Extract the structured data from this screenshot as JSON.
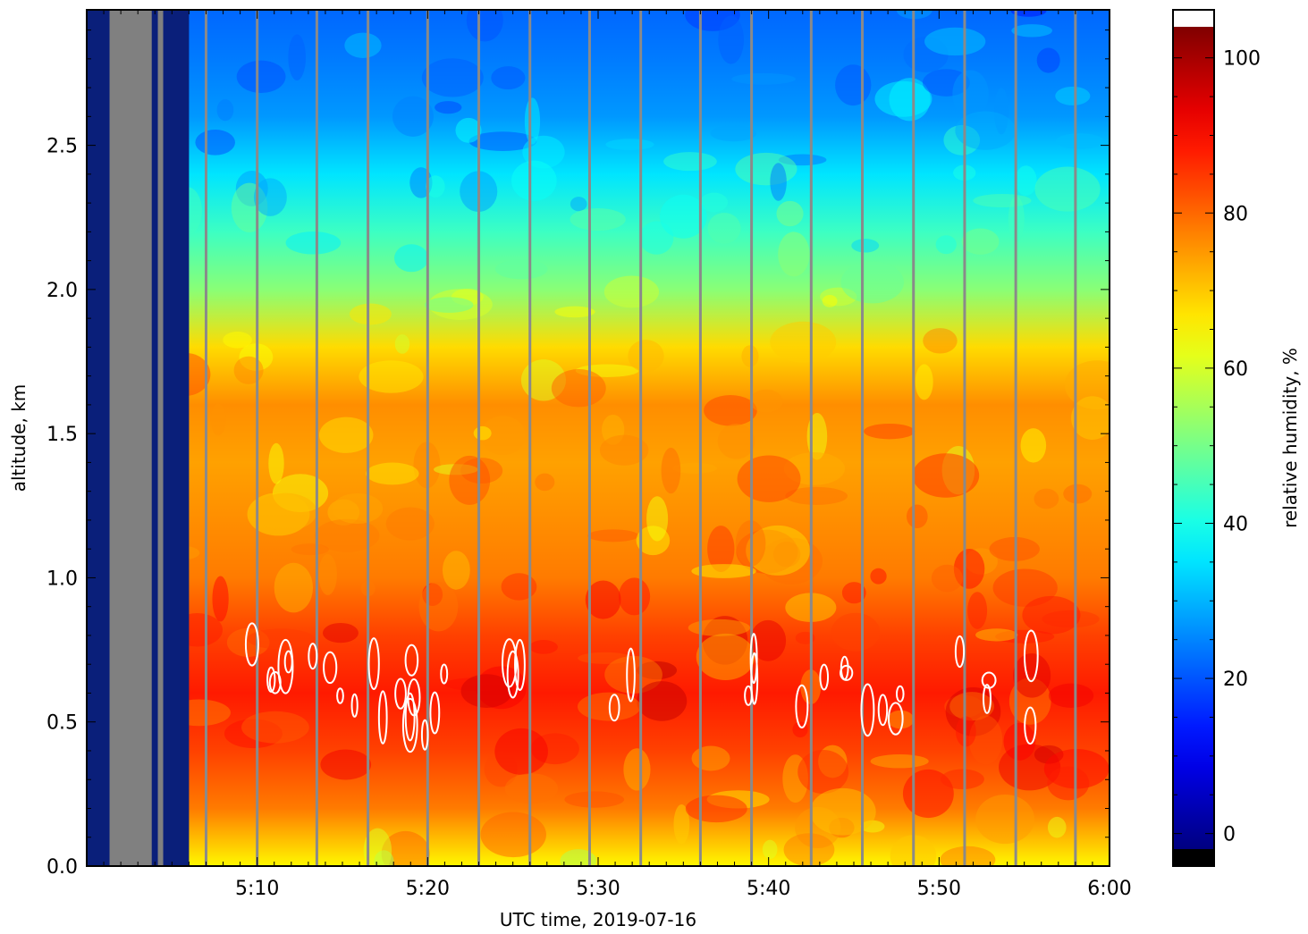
{
  "chart_data": {
    "type": "heatmap",
    "title": "",
    "xlabel": "UTC time,  2019-07-16",
    "ylabel": "altitude, km",
    "x_ticks": [
      "5:10",
      "5:20",
      "5:30",
      "5:40",
      "5:50",
      "6:00"
    ],
    "x_range": [
      "5:00",
      "6:00"
    ],
    "y_ticks": [
      "0.0",
      "0.5",
      "1.0",
      "1.5",
      "2.0",
      "2.5"
    ],
    "ylim": [
      0,
      2.97
    ],
    "colorbar": {
      "label": "relative humidity, %",
      "ticks": [
        "0",
        "20",
        "40",
        "60",
        "80",
        "100"
      ],
      "range": [
        -2,
        104
      ],
      "colormap": "jet",
      "under_color": "#000000",
      "over_color": "#ffffff",
      "missing_color": "#808080"
    },
    "rh_profile_by_altitude": {
      "altitude_km": [
        0.0,
        0.2,
        0.4,
        0.6,
        0.8,
        1.0,
        1.2,
        1.4,
        1.6,
        1.8,
        2.0,
        2.2,
        2.4,
        2.6,
        2.8,
        2.97
      ],
      "relative_humidity_percent": [
        65,
        78,
        84,
        88,
        84,
        78,
        76,
        74,
        76,
        68,
        52,
        44,
        35,
        27,
        24,
        22
      ]
    },
    "gap_vertical_lines_time": [
      "5:07",
      "5:10",
      "5:13.5",
      "5:16.5",
      "5:20",
      "5:23",
      "5:26",
      "5:29.5",
      "5:32.5",
      "5:36",
      "5:39",
      "5:42.5",
      "5:45.5",
      "5:48.5",
      "5:51.5",
      "5:54.5",
      "5:58"
    ],
    "missing_data_block": {
      "time_start": "5:00.5",
      "time_end": "5:06",
      "color": "gray/navy"
    },
    "cloud_contours": {
      "color": "white",
      "altitude_range_km": [
        0.45,
        1.0
      ]
    }
  }
}
